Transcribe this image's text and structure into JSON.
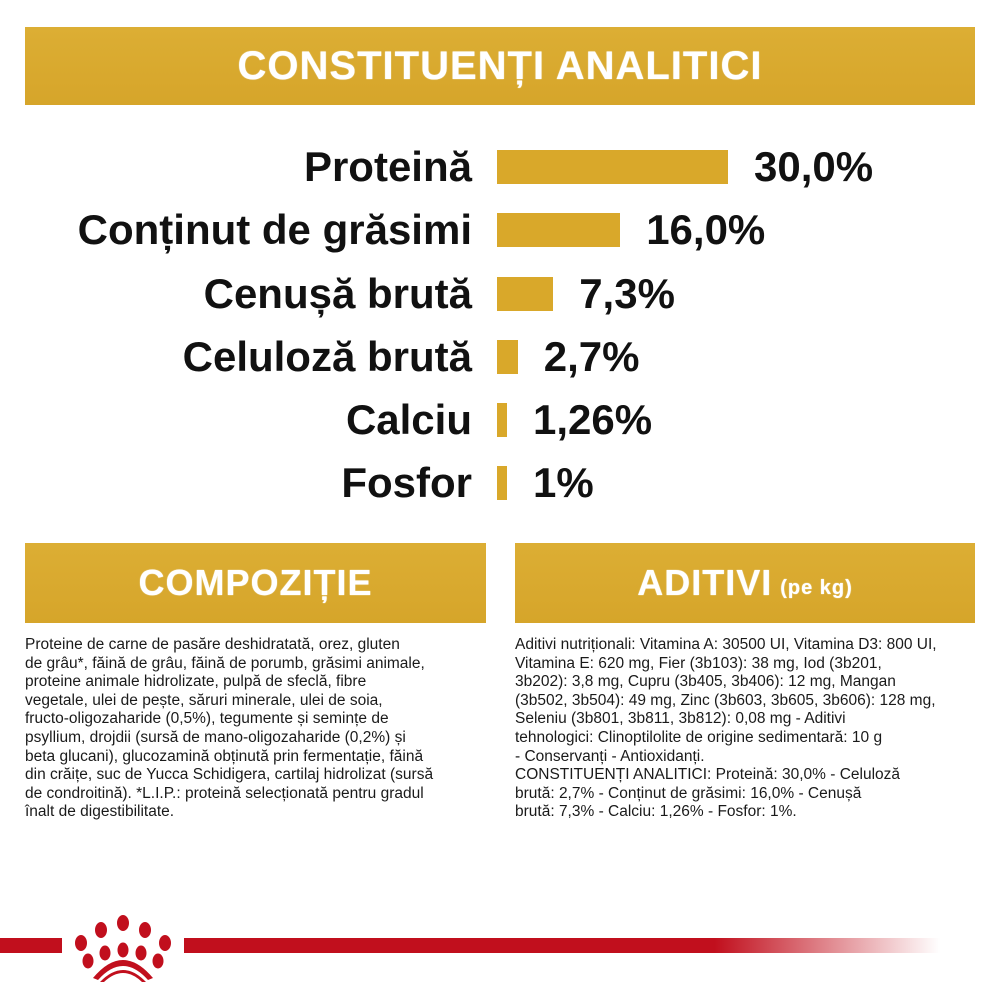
{
  "header": {
    "title": "CONSTITUENȚI ANALITICI"
  },
  "chart_data": {
    "type": "bar",
    "orientation": "horizontal",
    "categories": [
      "Proteină",
      "Conținut de grăsimi",
      "Cenușă brută",
      "Celuloză brută",
      "Calciu",
      "Fosfor"
    ],
    "values": [
      30.0,
      16.0,
      7.3,
      2.7,
      1.26,
      1
    ],
    "value_labels": [
      "30,0%",
      "16,0%",
      "7,3%",
      "2,7%",
      "1,26%",
      "1%"
    ],
    "unit": "%",
    "bar_color": "#d9a82a"
  },
  "composition": {
    "title": "COMPOZIȚIE",
    "lines": [
      "Proteine de carne de pasăre deshidratată, orez, gluten",
      "de grâu*, făină de grâu, făină de porumb, grăsimi animale,",
      "proteine animale hidrolizate, pulpă de sfeclă, fibre",
      "vegetale, ulei de pește, săruri minerale, ulei de soia,",
      "fructo-oligozaharide (0,5%), tegumente și semințe de",
      "psyllium, drojdii (sursă de mano-oligozaharide (0,2%) și",
      "beta glucani), glucozamină obținută prin fermentație, făină",
      "din crăițe, suc de Yucca Schidigera, cartilaj hidrolizat (sursă",
      "de condroitină). *L.I.P.: proteină selecționată pentru gradul",
      "înalt de digestibilitate."
    ]
  },
  "additives": {
    "title": "ADITIVI",
    "subtitle": "(pe kg)",
    "lines": [
      "Aditivi nutriționali: Vitamina A: 30500 UI, Vitamina D3: 800 UI,",
      "Vitamina E: 620 mg, Fier (3b103): 38 mg, Iod (3b201,",
      "3b202): 3,8 mg, Cupru (3b405, 3b406): 12 mg, Mangan",
      "(3b502, 3b504): 49 mg, Zinc (3b603, 3b605, 3b606): 128 mg,",
      "Seleniu (3b801, 3b811, 3b812): 0,08 mg - Aditivi",
      "tehnologici: Clinoptilolite de origine sedimentară: 10 g",
      "- Conservanți - Antioxidanți.",
      "CONSTITUENȚI ANALITICI: Proteină: 30,0% - Celuloză",
      "brută: 2,7% - Conținut de grăsimi: 16,0% - Cenușă",
      "brută: 7,3% - Calciu: 1,26% - Fosfor: 1%."
    ]
  },
  "footer": {
    "logo": "royal-canin-crown-logo",
    "line_color": "#c10f1d"
  }
}
